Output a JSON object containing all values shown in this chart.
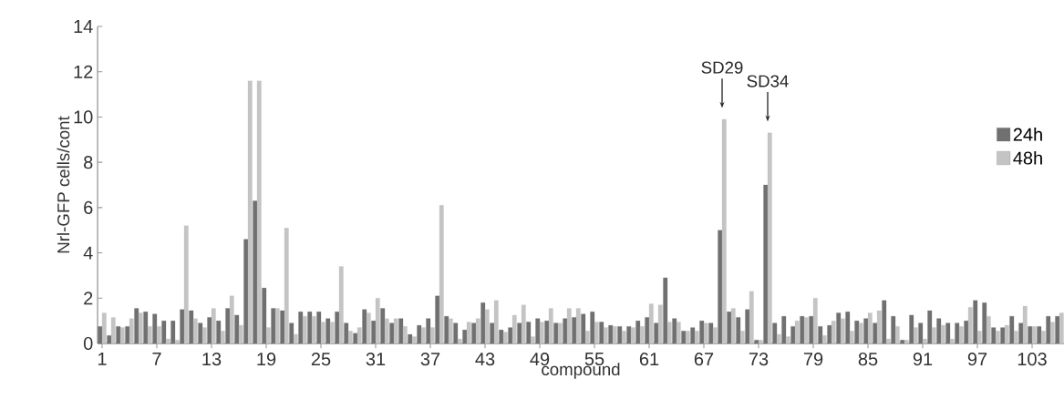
{
  "chart_data": {
    "type": "bar",
    "xlabel": "compound",
    "ylabel": "Nrl-GFP cells/cont",
    "x": [
      1,
      2,
      3,
      4,
      5,
      6,
      7,
      8,
      9,
      10,
      11,
      12,
      13,
      14,
      15,
      16,
      17,
      18,
      19,
      20,
      21,
      22,
      23,
      24,
      25,
      26,
      27,
      28,
      29,
      30,
      31,
      32,
      33,
      34,
      35,
      36,
      37,
      38,
      39,
      40,
      41,
      42,
      43,
      44,
      45,
      46,
      47,
      48,
      49,
      50,
      51,
      52,
      53,
      54,
      55,
      56,
      57,
      58,
      59,
      60,
      61,
      62,
      63,
      64,
      65,
      66,
      67,
      68,
      69,
      70,
      71,
      72,
      73,
      74,
      75,
      76,
      77,
      78,
      79,
      80,
      81,
      82,
      83,
      84,
      85,
      86,
      87,
      88,
      89,
      90,
      91,
      92,
      93,
      94,
      95,
      96,
      97,
      98,
      99,
      100,
      101,
      102,
      103,
      104,
      105,
      106
    ],
    "xlim": [
      0.5,
      106.5
    ],
    "xticks": [
      1,
      7,
      13,
      19,
      25,
      31,
      37,
      43,
      49,
      55,
      61,
      67,
      73,
      79,
      85,
      91,
      97,
      103
    ],
    "ylim": [
      0,
      14
    ],
    "yticks": [
      0,
      2,
      4,
      6,
      8,
      10,
      12,
      14
    ],
    "series": [
      {
        "name": "24h",
        "color": "#707070",
        "values": [
          0.75,
          0.35,
          0.75,
          0.75,
          1.55,
          1.4,
          1.3,
          1.0,
          1.0,
          1.5,
          1.45,
          0.9,
          1.15,
          1.0,
          1.55,
          1.25,
          4.6,
          6.3,
          2.45,
          1.55,
          1.45,
          0.9,
          1.4,
          1.4,
          1.4,
          1.1,
          1.4,
          0.9,
          0.45,
          1.5,
          1.0,
          1.55,
          0.9,
          1.1,
          0.4,
          0.8,
          1.1,
          2.1,
          1.2,
          0.9,
          0.6,
          0.9,
          1.8,
          0.9,
          0.6,
          0.7,
          0.9,
          0.95,
          1.1,
          1.0,
          0.9,
          1.1,
          1.15,
          1.3,
          1.4,
          0.95,
          0.8,
          0.75,
          0.75,
          1.0,
          1.15,
          0.9,
          2.9,
          1.1,
          0.55,
          0.7,
          1.0,
          0.9,
          5.0,
          1.4,
          1.15,
          1.5,
          0.15,
          7.0,
          0.9,
          1.2,
          0.75,
          1.2,
          1.2,
          0.75,
          0.8,
          1.35,
          1.4,
          1.0,
          1.1,
          0.9,
          1.9,
          1.2,
          0.15,
          1.25,
          0.9,
          1.45,
          1.1,
          0.9,
          0.9,
          1.0,
          1.9,
          1.8,
          0.7,
          0.7,
          1.2,
          0.9,
          0.75,
          0.75,
          1.2,
          1.2
        ]
      },
      {
        "name": "48h",
        "color": "#c4c4c4",
        "values": [
          1.35,
          1.15,
          0.7,
          1.1,
          1.35,
          0.75,
          0.75,
          0.2,
          0.15,
          5.2,
          1.1,
          0.7,
          1.55,
          0.55,
          2.1,
          0.8,
          11.6,
          11.6,
          0.7,
          1.55,
          5.1,
          0.4,
          1.2,
          1.2,
          0.95,
          0.95,
          3.4,
          0.55,
          0.7,
          1.35,
          2.0,
          1.1,
          1.1,
          0.75,
          0.3,
          0.7,
          0.7,
          6.1,
          1.1,
          0.2,
          0.95,
          1.1,
          1.5,
          1.9,
          0.5,
          1.25,
          1.7,
          0.3,
          0.95,
          1.55,
          0.9,
          1.55,
          1.55,
          0.55,
          0.95,
          0.7,
          0.75,
          0.55,
          0.7,
          0.75,
          1.75,
          1.7,
          0.95,
          0.95,
          0.55,
          0.55,
          0.9,
          0.7,
          9.9,
          1.55,
          0.55,
          2.3,
          0.15,
          9.3,
          0.4,
          0.3,
          1.0,
          1.15,
          2.0,
          0.35,
          1.0,
          1.1,
          0.55,
          0.9,
          1.35,
          1.45,
          0.2,
          0.75,
          0.15,
          0.7,
          0.2,
          0.7,
          0.8,
          0.2,
          0.75,
          1.6,
          0.55,
          1.2,
          0.55,
          0.8,
          0.55,
          1.65,
          0.75,
          0.55,
          0.95,
          1.35
        ]
      }
    ],
    "annotations": [
      {
        "text": "SD29",
        "x": 69,
        "y": 9.9
      },
      {
        "text": "SD34",
        "x": 74,
        "y": 9.3
      }
    ],
    "legend": "right"
  }
}
